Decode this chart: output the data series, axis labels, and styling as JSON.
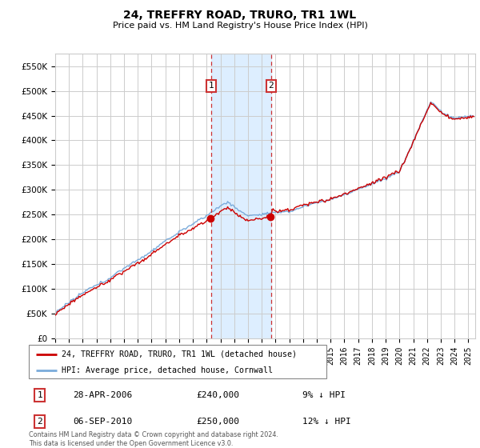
{
  "title": "24, TREFFRY ROAD, TRURO, TR1 1WL",
  "subtitle": "Price paid vs. HM Land Registry's House Price Index (HPI)",
  "xlim": [
    1995.0,
    2025.5
  ],
  "ylim": [
    0,
    575000
  ],
  "yticks": [
    0,
    50000,
    100000,
    150000,
    200000,
    250000,
    300000,
    350000,
    400000,
    450000,
    500000,
    550000
  ],
  "ytick_labels": [
    "£0",
    "£50K",
    "£100K",
    "£150K",
    "£200K",
    "£250K",
    "£300K",
    "£350K",
    "£400K",
    "£450K",
    "£500K",
    "£550K"
  ],
  "t1_num": 2006.32,
  "t2_num": 2010.68,
  "t1_price": 240000,
  "t2_price": 250000,
  "red_line_label": "24, TREFFRY ROAD, TRURO, TR1 1WL (detached house)",
  "blue_line_label": "HPI: Average price, detached house, Cornwall",
  "legend_items": [
    {
      "num": "1",
      "date": "28-APR-2006",
      "price": "£240,000",
      "hpi": "9% ↓ HPI"
    },
    {
      "num": "2",
      "date": "06-SEP-2010",
      "price": "£250,000",
      "hpi": "12% ↓ HPI"
    }
  ],
  "footer": "Contains HM Land Registry data © Crown copyright and database right 2024.\nThis data is licensed under the Open Government Licence v3.0.",
  "red_color": "#cc0000",
  "blue_color": "#7aabdb",
  "shade_color": "#ddeeff",
  "grid_color": "#cccccc",
  "box_color": "#cc3333"
}
